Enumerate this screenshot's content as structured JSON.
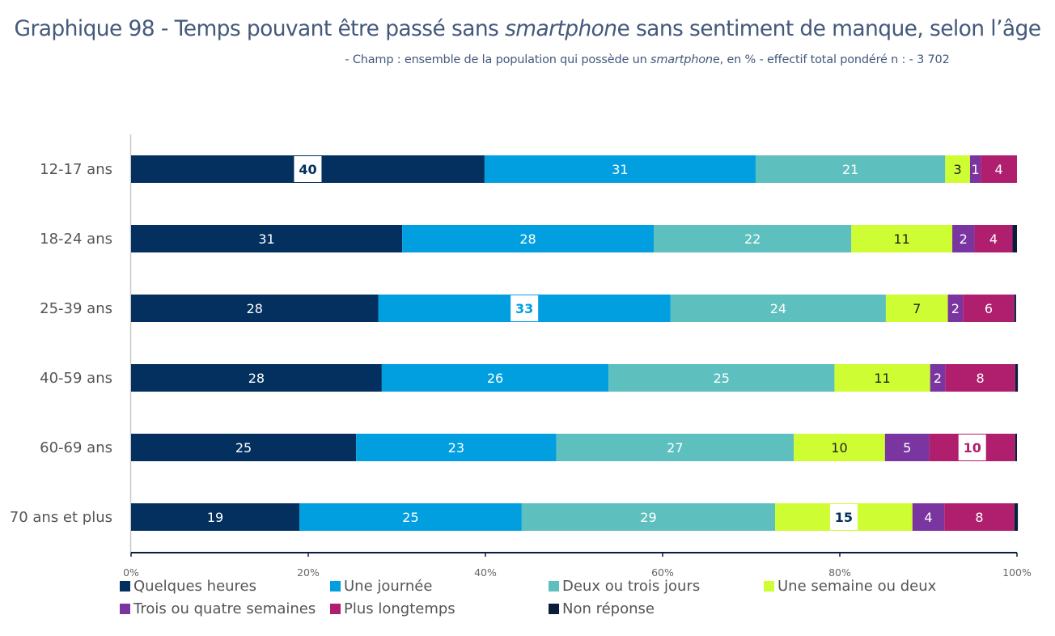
{
  "header": {
    "title_parts": [
      "Graphique 98 - Temps pouvant être passé sans ",
      "smartphon",
      "e sans sentiment de manque, selon l’âge"
    ],
    "subtitle_parts": [
      "- Champ : ensemble de la population qui possède un ",
      "smartphon",
      "e, en % - effectif total pondéré n : - 3 702"
    ]
  },
  "chart_data": {
    "type": "bar",
    "orientation": "horizontal",
    "stacked": true,
    "title": "Graphique 98 - Temps pouvant être passé sans smartphone sans sentiment de manque, selon l’âge",
    "subtitle": "- Champ : ensemble de la population qui possède un smartphone, en % - effectif total pondéré n : - 3 702",
    "xlabel": "",
    "ylabel": "",
    "xlim": [
      0,
      100
    ],
    "xticks": [
      "0%",
      "20%",
      "40%",
      "60%",
      "80%",
      "100%"
    ],
    "grid": false,
    "legend_position": "bottom",
    "categories": [
      "12-17 ans",
      "18-24 ans",
      "25-39 ans",
      "40-59 ans",
      "60-69 ans",
      "70 ans et plus"
    ],
    "series": [
      {
        "name": "Quelques heures",
        "color": "#03305f",
        "label_color": "#ffffff",
        "values": [
          39.9,
          30.6,
          27.9,
          28.3,
          25.4,
          19.0
        ],
        "labels": [
          "40",
          "31",
          "28",
          "28",
          "25",
          "19"
        ]
      },
      {
        "name": "Une journée",
        "color": "#029fe0",
        "label_color": "#ffffff",
        "values": [
          30.6,
          28.4,
          33.0,
          25.6,
          22.6,
          25.1
        ],
        "labels": [
          "31",
          "28",
          "33",
          "26",
          "23",
          "25"
        ]
      },
      {
        "name": "Deux ou trois jours",
        "color": "#5ebfbf",
        "label_color": "#ffffff",
        "values": [
          21.4,
          22.3,
          24.3,
          25.5,
          26.8,
          28.6
        ],
        "labels": [
          "21",
          "22",
          "24",
          "25",
          "27",
          "29"
        ]
      },
      {
        "name": "Une semaine ou deux",
        "color": "#cdfd32",
        "label_color": "#222222",
        "values": [
          2.8,
          11.4,
          7.0,
          10.8,
          10.3,
          15.5
        ],
        "labels": [
          "3",
          "11",
          "7",
          "11",
          "10",
          "15"
        ]
      },
      {
        "name": "Trois ou quatre semaines",
        "color": "#7b35a0",
        "label_color": "#ffffff",
        "values": [
          1.2,
          2.5,
          1.7,
          1.7,
          5.0,
          3.6
        ],
        "labels": [
          "1",
          "2",
          "2",
          "2",
          "5",
          "4"
        ]
      },
      {
        "name": "Plus longtemps",
        "color": "#b01f6e",
        "label_color": "#ffffff",
        "values": [
          4.1,
          4.3,
          5.8,
          7.9,
          9.7,
          7.9
        ],
        "labels": [
          "4",
          "4",
          "6",
          "8",
          "10",
          "8"
        ]
      },
      {
        "name": "Non réponse",
        "color": "#0a1e3c",
        "label_color": "#ffffff",
        "values": [
          0.0,
          0.5,
          0.2,
          0.3,
          0.2,
          0.4
        ],
        "labels": [
          "",
          "",
          "",
          "",
          "",
          ""
        ]
      }
    ],
    "highlighted_labels": [
      {
        "category": "12-17 ans",
        "series": "Quelques heures",
        "value": "40"
      },
      {
        "category": "25-39 ans",
        "series": "Une journée",
        "value": "33"
      },
      {
        "category": "60-69 ans",
        "series": "Plus longtemps",
        "value": "10"
      },
      {
        "category": "70 ans et plus",
        "series": "Une semaine ou deux",
        "value": "15"
      }
    ]
  }
}
